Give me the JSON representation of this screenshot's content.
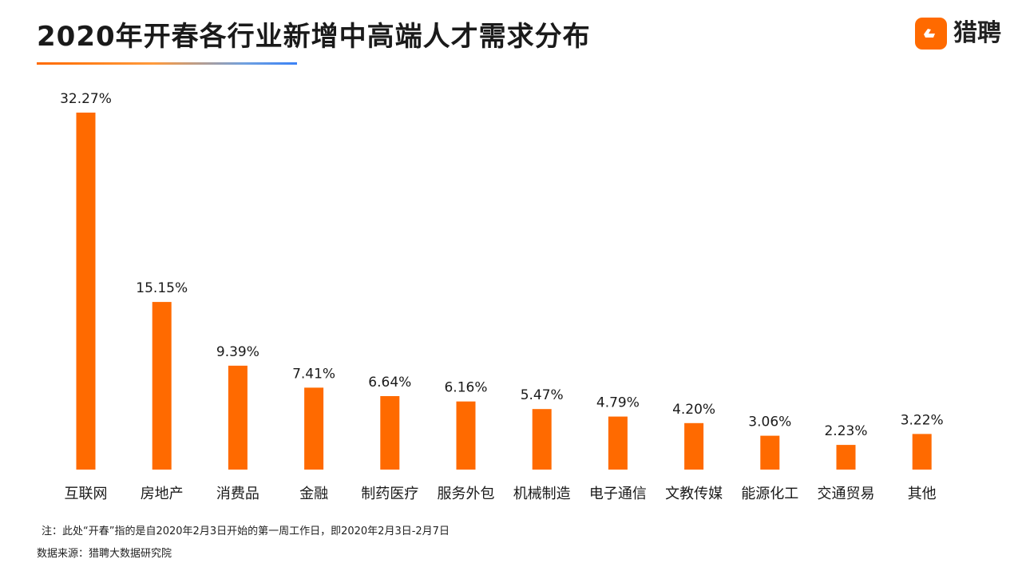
{
  "header": {
    "title": "2020年开春各行业新增中高端人才需求分布",
    "brand_name": "猎聘",
    "brand_icon": "liepin-logo-icon"
  },
  "colors": {
    "bar": "#ff6a00",
    "brand": "#ff6a00",
    "text": "#1a1a1a"
  },
  "chart_data": {
    "type": "bar",
    "title": "2020年开春各行业新增中高端人才需求分布",
    "xlabel": "",
    "ylabel": "",
    "categories": [
      "互联网",
      "房地产",
      "消费品",
      "金融",
      "制药医疗",
      "服务外包",
      "机械制造",
      "电子通信",
      "文教传媒",
      "能源化工",
      "交通贸易",
      "其他"
    ],
    "values": [
      32.27,
      15.15,
      9.39,
      7.41,
      6.64,
      6.16,
      5.47,
      4.79,
      4.2,
      3.06,
      2.23,
      3.22
    ],
    "value_labels": [
      "32.27%",
      "15.15%",
      "9.39%",
      "7.41%",
      "6.64%",
      "6.16%",
      "5.47%",
      "4.79%",
      "4.20%",
      "3.06%",
      "2.23%",
      "3.22%"
    ],
    "unit": "%",
    "ylim": [
      0,
      32.27
    ],
    "grid": false,
    "legend": "none"
  },
  "footer": {
    "note": "注：此处“开春”指的是自2020年2月3日开始的第一周工作日，即2020年2月3日-2月7日",
    "source": "数据来源：猎聘大数据研究院"
  }
}
